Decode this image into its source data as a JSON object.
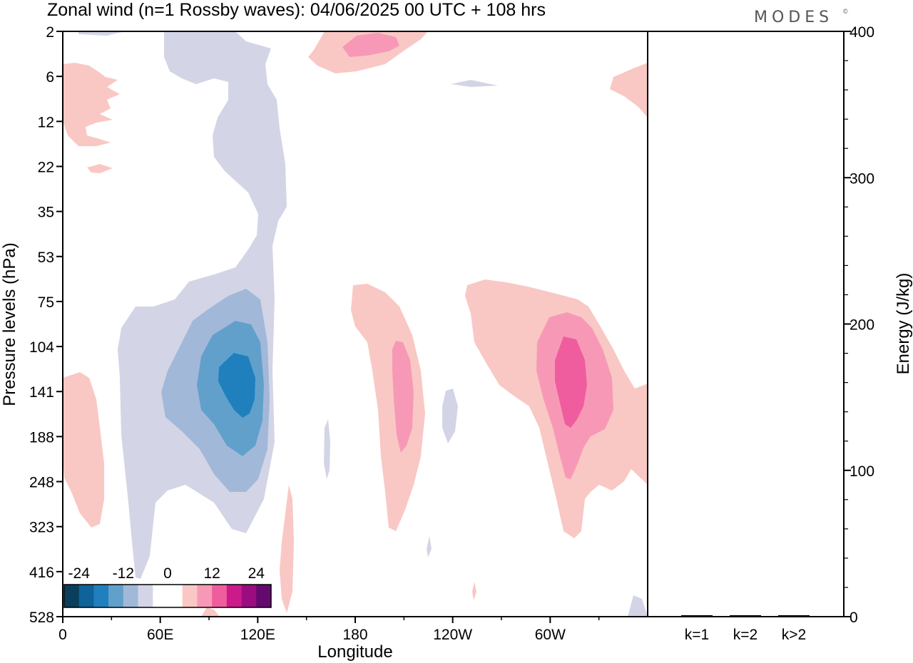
{
  "chart_data": {
    "type": "heatmap",
    "title": "Zonal wind (n=1 Rossby waves):  04/06/2025  00 UTC  + 108 hrs",
    "brand": "MODES",
    "brand_mark": "©",
    "xlabel": "Longitude",
    "ylabel": "Pressure levels (hPa)",
    "y2label": "Energy (J/kg)",
    "x_ticks": [
      "0",
      "60E",
      "120E",
      "180",
      "120W",
      "60W"
    ],
    "x_tick_values": [
      0,
      60,
      120,
      180,
      240,
      300
    ],
    "xlim": [
      0,
      360
    ],
    "y_ticks": [
      "2",
      "6",
      "12",
      "22",
      "35",
      "53",
      "75",
      "104",
      "141",
      "188",
      "248",
      "323",
      "416",
      "528"
    ],
    "y2_ticks": [
      "0",
      "100",
      "200",
      "300",
      "400"
    ],
    "y2_tick_values": [
      0,
      100,
      200,
      300,
      400
    ],
    "y2lim": [
      0,
      400
    ],
    "colorbar": {
      "labels": [
        "-24",
        "-12",
        "0",
        "12",
        "24"
      ],
      "colors": [
        "#0a3f5c",
        "#0e6399",
        "#2080be",
        "#62a0cc",
        "#a2b8d9",
        "#d3d5e6",
        "#ffffff",
        "#ffffff",
        "#f9c8c4",
        "#f799b6",
        "#f05d9e",
        "#cc1a8a",
        "#9a0d80",
        "#640a6e"
      ]
    },
    "contour_features": [
      {
        "sign": "negative",
        "level_max": -24,
        "center_lon": 111,
        "center_hpa": 130
      },
      {
        "sign": "positive",
        "level_max": 12,
        "center_lon": 203,
        "center_hpa": 135
      },
      {
        "sign": "positive",
        "level_max": 18,
        "center_lon": 307,
        "center_hpa": 130
      },
      {
        "sign": "positive",
        "level_max": 12,
        "center_lon": 200,
        "center_hpa": 2.6
      }
    ],
    "energy": {
      "categories": [
        "k=1",
        "k=2",
        "k>2"
      ],
      "values": [
        0.5,
        0.5,
        0.5
      ]
    }
  },
  "colors": {
    "neg1": "#d3d5e6",
    "neg2": "#a2b8d9",
    "neg3": "#62a0cc",
    "neg4": "#2080be",
    "pos1": "#f9c8c4",
    "pos2": "#f799b6",
    "pos3": "#f05d9e"
  }
}
